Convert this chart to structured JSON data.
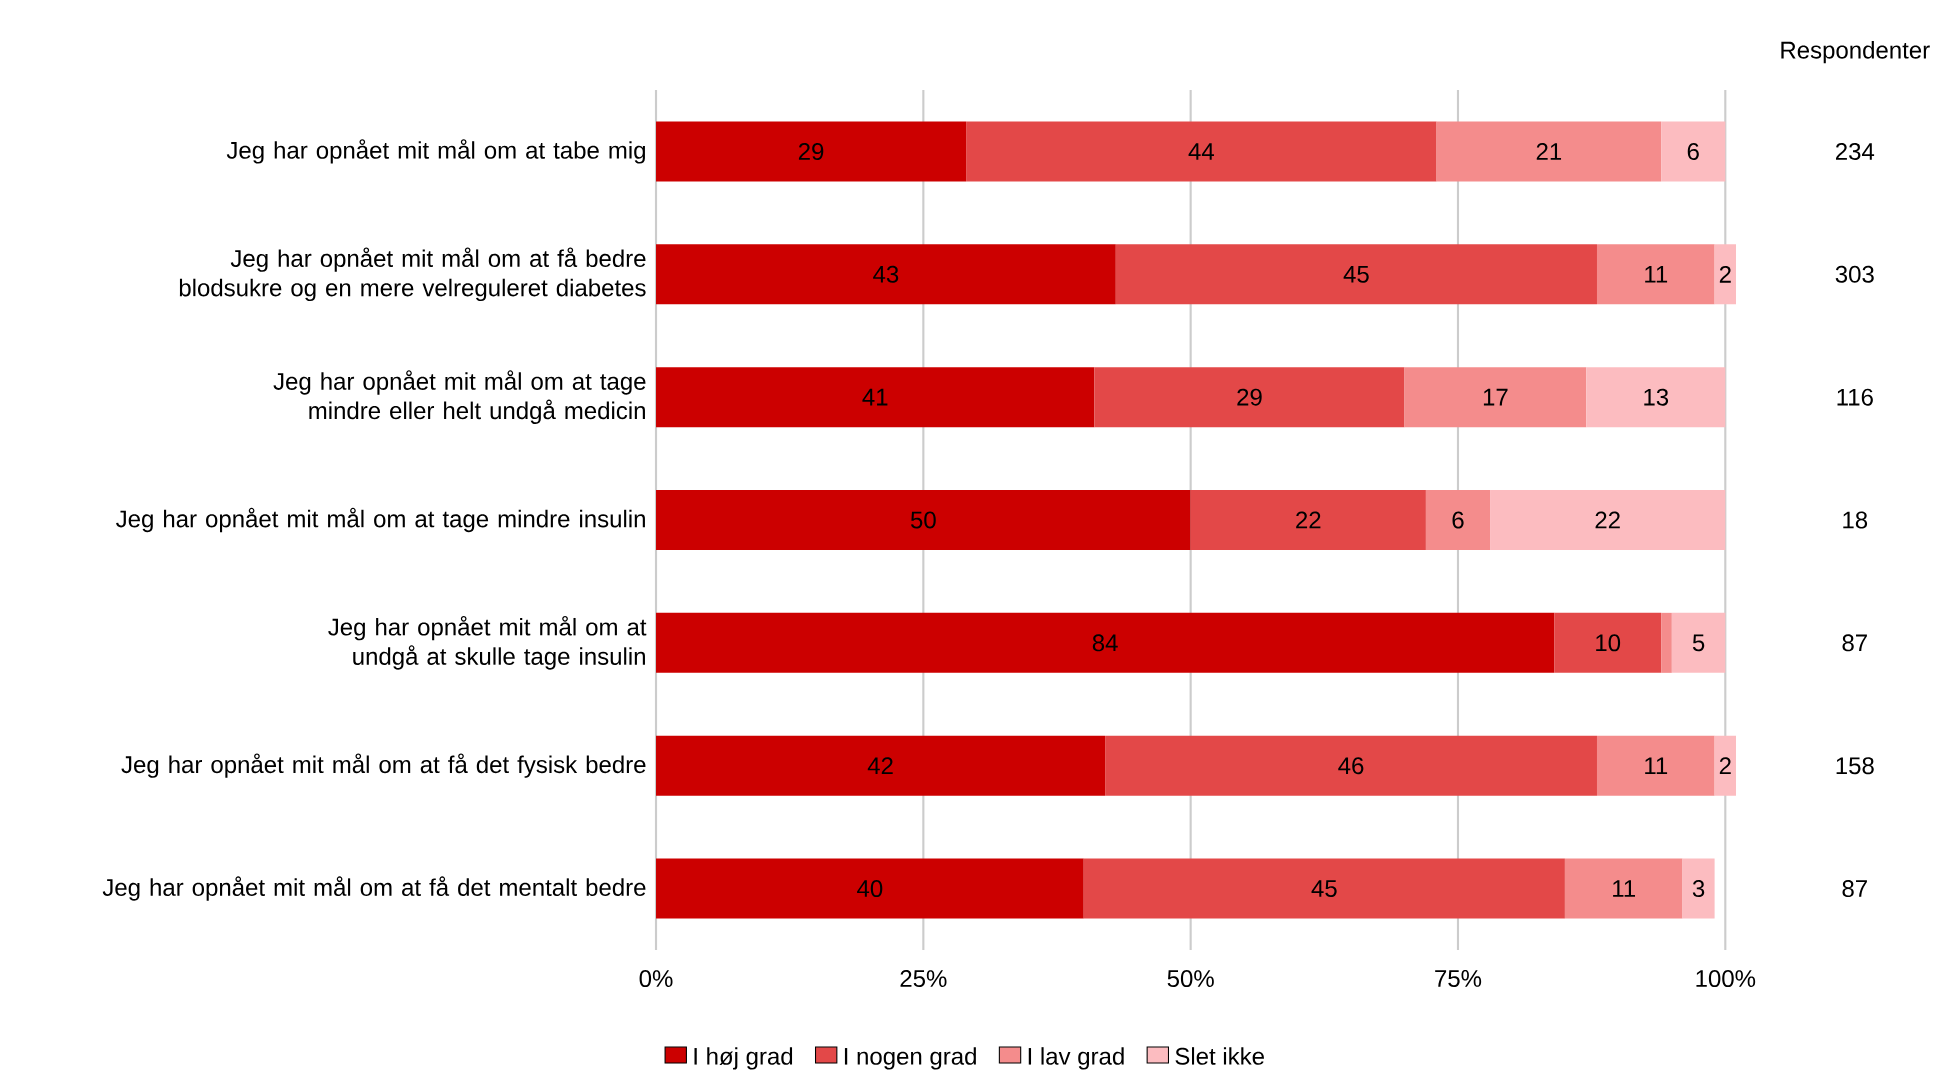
{
  "chart_data": {
    "type": "bar",
    "orientation": "horizontal",
    "stacked": true,
    "categories": [
      "Jeg har opnået mit mål om at tabe mig",
      "Jeg har opnået mit mål om at få bedre blodsukre og en mere velreguleret diabetes",
      "Jeg har opnået mit mål om at tage mindre eller helt undgå medicin",
      "Jeg har opnået mit mål om at tage mindre insulin",
      "Jeg har opnået mit mål om at undgå at skulle tage insulin",
      "Jeg har opnået mit mål om at få det fysisk bedre",
      "Jeg har opnået mit mål om at få det mentalt bedre"
    ],
    "series": [
      {
        "name": "I høj grad",
        "color": "#cc0000",
        "values": [
          29,
          43,
          41,
          50,
          84,
          42,
          40
        ],
        "value_labels": [
          "29",
          "43",
          "41",
          "50",
          "84",
          "42",
          "40"
        ]
      },
      {
        "name": "I nogen grad",
        "color": "#e34848",
        "values": [
          44,
          45,
          29,
          22,
          10,
          46,
          45
        ],
        "value_labels": [
          "44",
          "45",
          "29",
          "22",
          "10",
          "46",
          "45"
        ]
      },
      {
        "name": "I lav grad",
        "color": "#f48c8c",
        "values": [
          21,
          11,
          17,
          6,
          1,
          11,
          11
        ],
        "value_labels": [
          "21",
          "11",
          "17",
          "6",
          null,
          "11",
          "11"
        ]
      },
      {
        "name": "Slet ikke",
        "color": "#fcbcc0",
        "values": [
          6,
          2,
          13,
          22,
          5,
          2,
          3
        ],
        "value_labels": [
          "6",
          "2",
          "13",
          "22",
          "5",
          "2",
          "3"
        ]
      }
    ],
    "xlim": [
      0,
      101
    ],
    "xticks": [
      {
        "value": 0,
        "label": "0%"
      },
      {
        "value": 25,
        "label": "25%"
      },
      {
        "value": 50,
        "label": "50%"
      },
      {
        "value": 75,
        "label": "75%"
      },
      {
        "value": 100,
        "label": "100%"
      }
    ],
    "grid": "x",
    "legend": "bottom",
    "annotations": [
      "Respondenter",
      "234",
      "303",
      "116",
      "18",
      "87",
      "158",
      "87"
    ]
  }
}
